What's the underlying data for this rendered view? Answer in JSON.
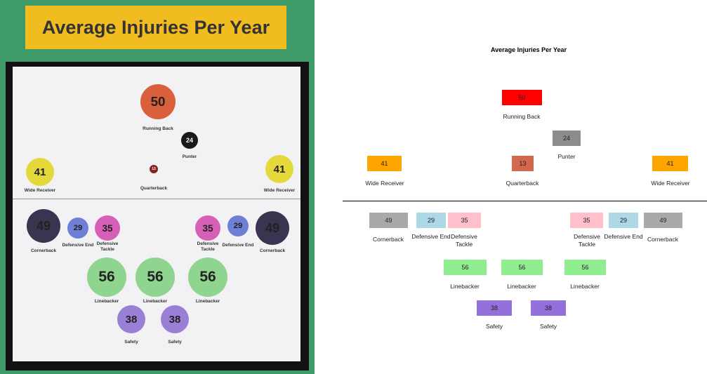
{
  "photo": {
    "title": "Average Injuries Per Year",
    "players": [
      {
        "label": "Running Back",
        "value": 50,
        "color": "#d9603b"
      },
      {
        "label": "Punter",
        "value": 24,
        "color": "#1a1a1a"
      },
      {
        "label": "Quarterback",
        "value": 13,
        "color": "#8b2222"
      },
      {
        "label": "Wide Receiver",
        "value": 41,
        "color": "#e4d83a"
      },
      {
        "label": "Wide Receiver",
        "value": 41,
        "color": "#e4d83a"
      },
      {
        "label": "Cornerback",
        "value": 49,
        "color": "#3a3450"
      },
      {
        "label": "Defensive End",
        "value": 29,
        "color": "#6f7fd6"
      },
      {
        "label": "Defensive Tackle",
        "value": 35,
        "color": "#d65fb7"
      },
      {
        "label": "Defensive Tackle",
        "value": 35,
        "color": "#d65fb7"
      },
      {
        "label": "Defensive End",
        "value": 29,
        "color": "#6f7fd6"
      },
      {
        "label": "Cornerback",
        "value": 49,
        "color": "#3a3450"
      },
      {
        "label": "Linebacker",
        "value": 56,
        "color": "#8fd48f"
      },
      {
        "label": "Linebacker",
        "value": 56,
        "color": "#8fd48f"
      },
      {
        "label": "Linebacker",
        "value": 56,
        "color": "#8fd48f"
      },
      {
        "label": "Safety",
        "value": 38,
        "color": "#9a7fd6"
      },
      {
        "label": "Safety",
        "value": 38,
        "color": "#9a7fd6"
      }
    ]
  },
  "diagram": {
    "title": "Average Injuries Per Year",
    "players": [
      {
        "label": "Running Back",
        "value": 50,
        "color": "#ff0000"
      },
      {
        "label": "Punter",
        "value": 24,
        "color": "#8c8c8c"
      },
      {
        "label": "Quarterback",
        "value": 13,
        "color": "#d2694f"
      },
      {
        "label": "Wide Receiver",
        "value": 41,
        "color": "#ffa500"
      },
      {
        "label": "Wide Receiver",
        "value": 41,
        "color": "#ffa500"
      },
      {
        "label": "Cornerback",
        "value": 49,
        "color": "#a9a9a9"
      },
      {
        "label": "Defensive End",
        "value": 29,
        "color": "#add8e6"
      },
      {
        "label": "Defensive Tackle",
        "value": 35,
        "color": "#ffc0cb"
      },
      {
        "label": "Defensive Tackle",
        "value": 35,
        "color": "#ffc0cb"
      },
      {
        "label": "Defensive End",
        "value": 29,
        "color": "#add8e6"
      },
      {
        "label": "Cornerback",
        "value": 49,
        "color": "#a9a9a9"
      },
      {
        "label": "Linebacker",
        "value": 56,
        "color": "#90ee90"
      },
      {
        "label": "Linebacker",
        "value": 56,
        "color": "#90ee90"
      },
      {
        "label": "Linebacker",
        "value": 56,
        "color": "#90ee90"
      },
      {
        "label": "Safety",
        "value": 38,
        "color": "#9370db"
      },
      {
        "label": "Safety",
        "value": 38,
        "color": "#9370db"
      }
    ]
  }
}
